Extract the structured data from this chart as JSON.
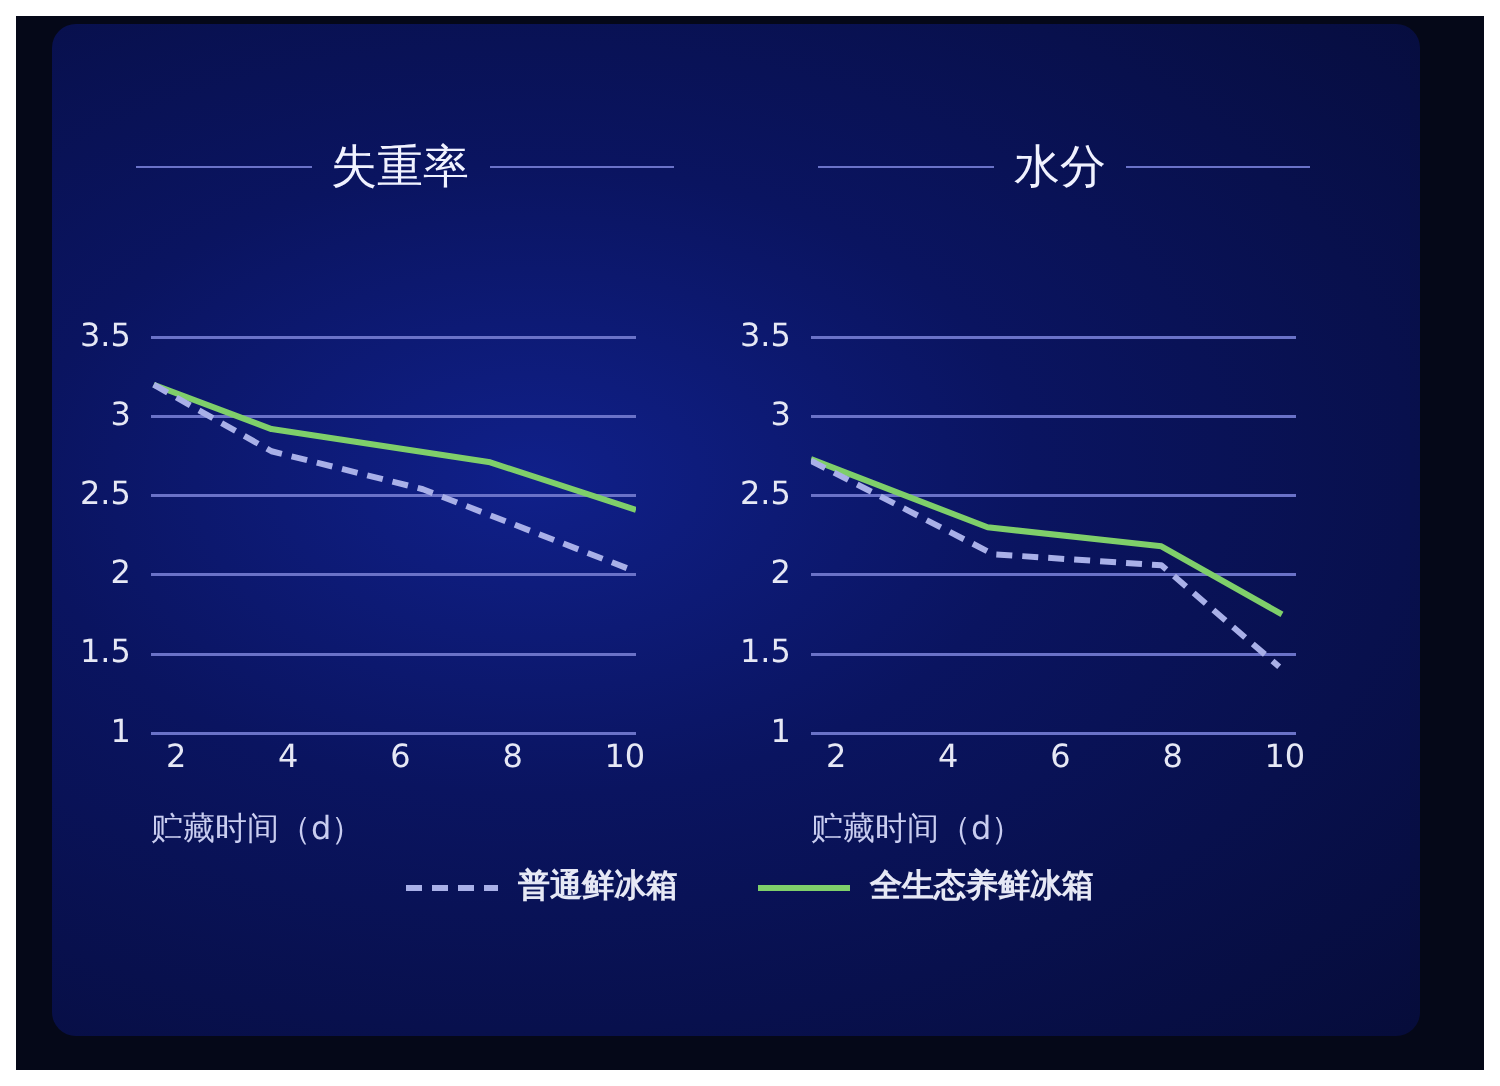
{
  "chart_data": [
    {
      "type": "line",
      "title": "失重率",
      "xlabel": "贮藏时间（d）",
      "xlim": [
        1.55,
        10.2
      ],
      "xticks": [
        2,
        4,
        6,
        8,
        10
      ],
      "ylim": [
        1,
        3.5
      ],
      "yticks": [
        1,
        1.5,
        2,
        2.5,
        3,
        3.5
      ],
      "grid": "y",
      "legend": "bottom",
      "marker": "none",
      "series": [
        {
          "name": "普通鲜冰箱",
          "color": "#a9b0e8",
          "line_style": "dashed",
          "x": [
            1.6,
            3.7,
            6.4,
            10.2
          ],
          "values": [
            3.2,
            2.78,
            2.54,
            2.02
          ]
        },
        {
          "name": "全生态养鲜冰箱",
          "color": "#7fcf6a",
          "line_style": "solid",
          "x": [
            1.6,
            3.7,
            7.6,
            10.2
          ],
          "values": [
            3.2,
            2.92,
            2.71,
            2.41
          ]
        }
      ]
    },
    {
      "type": "line",
      "title": "水分",
      "xlabel": "贮藏时间（d）",
      "xlim": [
        1.55,
        10.2
      ],
      "xticks": [
        2,
        4,
        6,
        8,
        10
      ],
      "ylim": [
        1,
        3.5
      ],
      "yticks": [
        1,
        1.5,
        2,
        2.5,
        3,
        3.5
      ],
      "grid": "y",
      "legend": "bottom",
      "marker": "none",
      "series": [
        {
          "name": "普通鲜冰箱",
          "color": "#a9b0e8",
          "line_style": "dashed",
          "x": [
            1.55,
            4.8,
            7.8,
            9.9
          ],
          "values": [
            2.72,
            2.13,
            2.06,
            1.42
          ]
        },
        {
          "name": "全生态养鲜冰箱",
          "color": "#7fcf6a",
          "line_style": "solid",
          "x": [
            1.55,
            4.7,
            7.8,
            9.95
          ],
          "values": [
            2.73,
            2.3,
            2.18,
            1.75
          ]
        }
      ]
    }
  ]
}
